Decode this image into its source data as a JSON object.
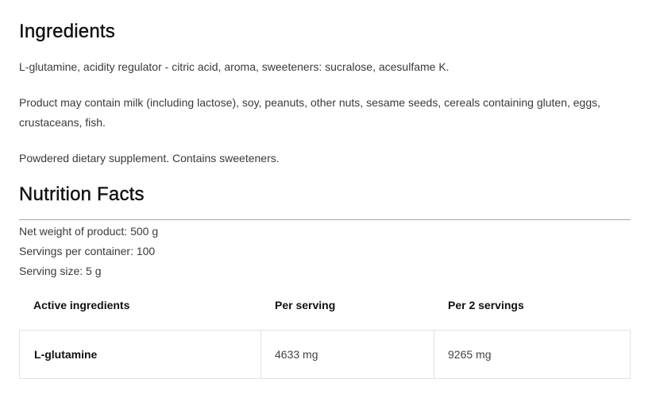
{
  "ingredients": {
    "title": "Ingredients",
    "paragraphs": [
      "L-glutamine, acidity regulator - citric acid, aroma, sweeteners: sucralose, acesulfame K.",
      "Product may contain milk (including lactose), soy, peanuts, other nuts, sesame seeds, cereals containing gluten, eggs, crustaceans, fish.",
      "Powdered dietary supplement. Contains sweeteners."
    ]
  },
  "nutrition": {
    "title": "Nutrition Facts",
    "facts": [
      "Net weight of product: 500 g",
      "Servings per container: 100",
      "Serving size: 5 g"
    ],
    "table": {
      "headers": [
        "Active ingredients",
        "Per serving",
        "Per 2 servings"
      ],
      "rows": [
        [
          "L-glutamine",
          "4633 mg",
          "9265 mg"
        ]
      ]
    }
  }
}
